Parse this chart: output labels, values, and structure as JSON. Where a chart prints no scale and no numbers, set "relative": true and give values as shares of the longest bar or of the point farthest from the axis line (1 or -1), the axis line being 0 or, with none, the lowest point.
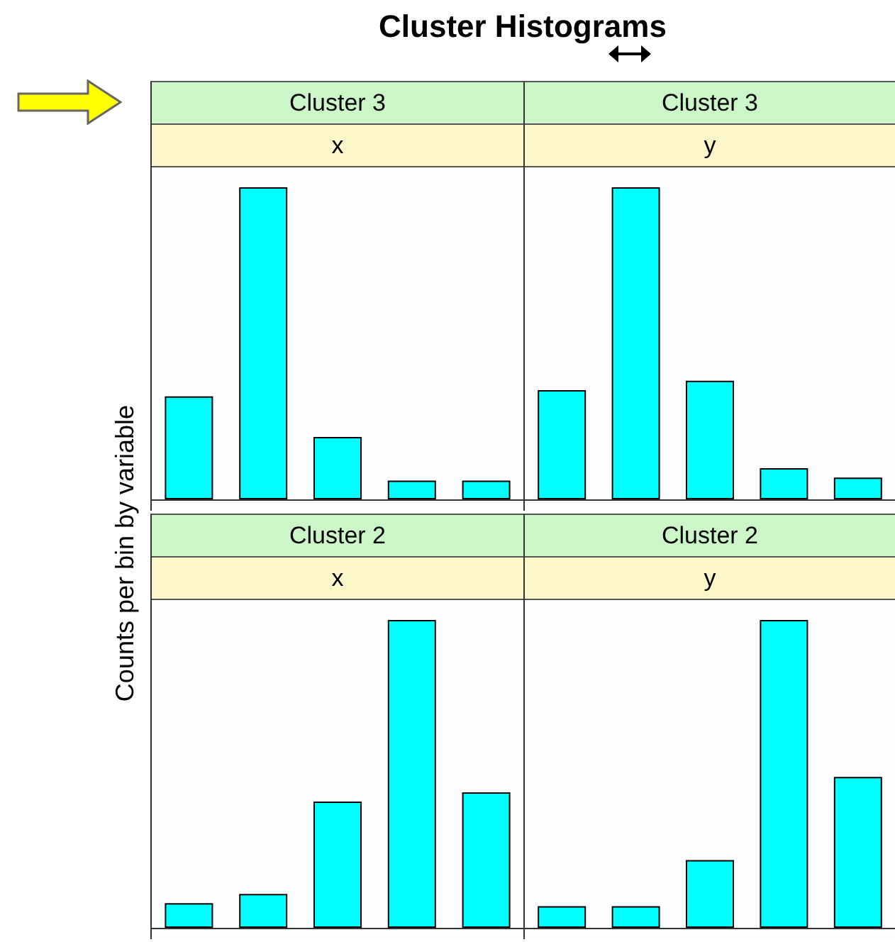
{
  "chart_data": [
    {
      "type": "bar",
      "title": "Cluster 3",
      "subtitle": "x",
      "annotations": [
        "Cluster Histograms"
      ],
      "ylabel": "Counts per bin by variable",
      "categories": [
        null,
        null,
        null,
        null,
        null
      ],
      "values": [
        0.33,
        1,
        0.2,
        0.06,
        0.06
      ],
      "color": "#00ffff",
      "relative": true
    },
    {
      "type": "bar",
      "title": "Cluster 3",
      "subtitle": "y",
      "categories": [
        null,
        null,
        null,
        null,
        null
      ],
      "values": [
        0.35,
        1,
        0.38,
        0.1,
        0.07
      ],
      "color": "#00ffff",
      "relative": true
    },
    {
      "type": "bar",
      "title": "Cluster 2",
      "subtitle": "x",
      "categories": [
        null,
        null,
        null,
        null,
        null
      ],
      "values": [
        0.08,
        0.11,
        0.41,
        1,
        0.44
      ],
      "color": "#00ffff",
      "relative": true
    },
    {
      "type": "bar",
      "title": "Cluster 2",
      "subtitle": "y",
      "categories": [
        null,
        null,
        null,
        null,
        null
      ],
      "values": [
        0.07,
        0.07,
        0.22,
        1,
        0.49
      ],
      "color": "#00ffff",
      "relative": true
    }
  ]
}
